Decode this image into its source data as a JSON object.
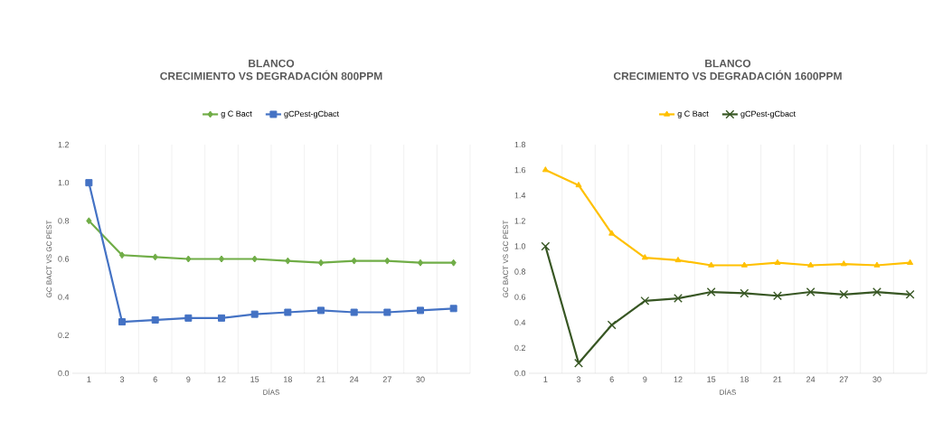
{
  "chart_data": [
    {
      "type": "line",
      "title": "BLANCO",
      "subtitle": "CRECIMIENTO VS DEGRADACIÓN 800PPM",
      "xlabel": "DÍAS",
      "ylabel": "GC BACT VS GC PEST",
      "categories": [
        "1",
        "3",
        "6",
        "9",
        "12",
        "15",
        "18",
        "21",
        "24",
        "27",
        "30",
        null
      ],
      "series": [
        {
          "name": "g C Bact",
          "color": "#70ad47",
          "marker": "diamond",
          "values": [
            0.8,
            0.62,
            0.61,
            0.6,
            0.6,
            0.6,
            0.59,
            0.58,
            0.59,
            0.59,
            0.58,
            0.58
          ]
        },
        {
          "name": "gCPest-gCbact",
          "color": "#4472c4",
          "marker": "square",
          "values": [
            1.0,
            0.27,
            0.28,
            0.29,
            0.29,
            0.31,
            0.32,
            0.33,
            0.32,
            0.32,
            0.33,
            0.34
          ]
        }
      ],
      "ylim": [
        0,
        1.2
      ],
      "yticks": [
        {
          "value": 0,
          "label": "0.0"
        },
        {
          "value": 0.2,
          "label": "0.2"
        },
        {
          "value": 0.4,
          "label": "0.4"
        },
        {
          "value": 0.6,
          "label": "0.6"
        },
        {
          "value": 0.8,
          "label": "0.8"
        },
        {
          "value": 1.0,
          "label": "1.0"
        },
        {
          "value": 1.2,
          "label": "1.2"
        }
      ],
      "grid": "x",
      "legend": "top",
      "line_style": "solid"
    },
    {
      "type": "line",
      "title": "BLANCO",
      "subtitle": "CRECIMIENTO VS DEGRADACIÓN 1600PPM",
      "xlabel": "DÍAS",
      "ylabel": "GC BACT VS GC PEST",
      "categories": [
        "1",
        "3",
        "6",
        "9",
        "12",
        "15",
        "18",
        "21",
        "24",
        "27",
        "30",
        null
      ],
      "series": [
        {
          "name": "g C Bact",
          "color": "#ffc000",
          "marker": "triangle",
          "values": [
            1.6,
            1.48,
            1.1,
            0.91,
            0.89,
            0.85,
            0.85,
            0.87,
            0.85,
            0.86,
            0.85,
            0.87
          ]
        },
        {
          "name": "gCPest-gCbact",
          "color": "#375623",
          "marker": "cross",
          "values": [
            1.0,
            0.08,
            0.38,
            0.57,
            0.59,
            0.64,
            0.63,
            0.61,
            0.64,
            0.62,
            0.64,
            0.62
          ]
        }
      ],
      "ylim": [
        0,
        1.8
      ],
      "yticks": [
        {
          "value": 0,
          "label": "0.0"
        },
        {
          "value": 0.2,
          "label": "0.2"
        },
        {
          "value": 0.4,
          "label": "0.4"
        },
        {
          "value": 0.6,
          "label": "0.6"
        },
        {
          "value": 0.8,
          "label": "0.8"
        },
        {
          "value": 1.0,
          "label": "1.0"
        },
        {
          "value": 1.2,
          "label": "1.2"
        },
        {
          "value": 1.4,
          "label": "1.4"
        },
        {
          "value": 1.6,
          "label": "1.6"
        },
        {
          "value": 1.8,
          "label": "1.8"
        }
      ],
      "grid": "x",
      "legend": "top",
      "line_style": "solid"
    }
  ]
}
